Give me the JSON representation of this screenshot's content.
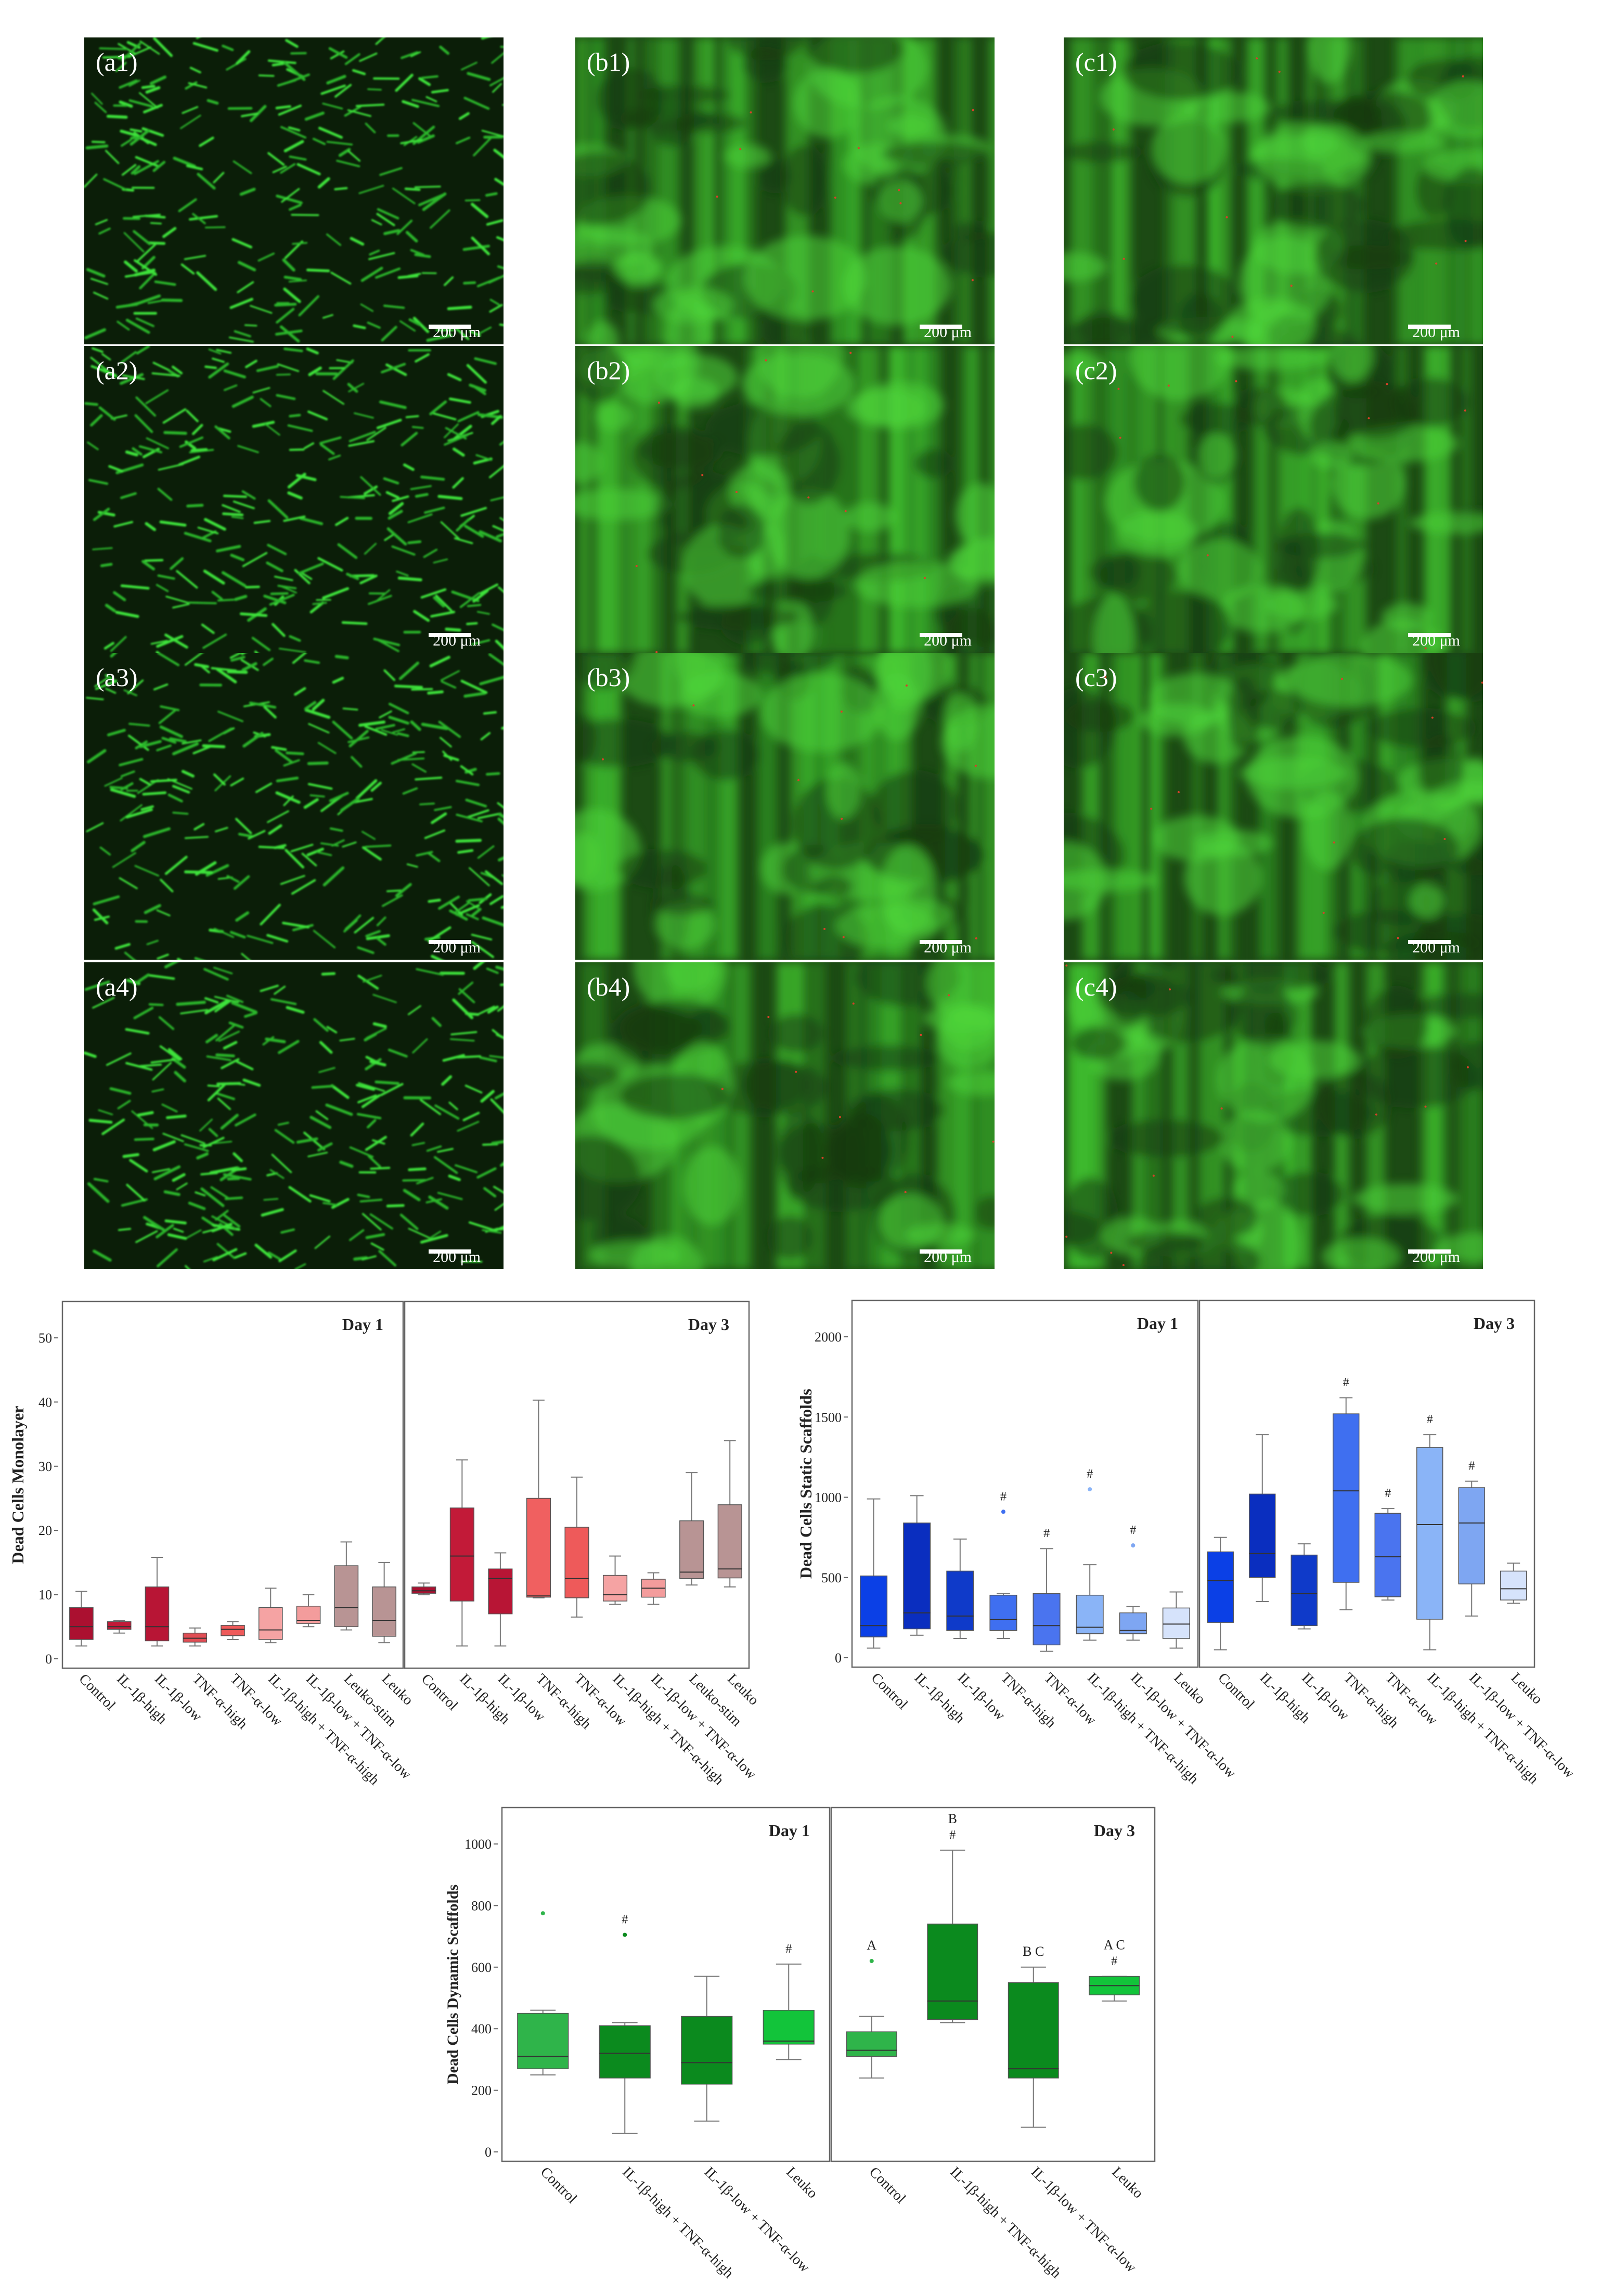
{
  "micrographs": [
    {
      "label": "(a1)",
      "scale": "200 μm",
      "kind": "mono"
    },
    {
      "label": "(b1)",
      "scale": "200 μm",
      "kind": "scaf"
    },
    {
      "label": "(c1)",
      "scale": "200 μm",
      "kind": "scaf"
    },
    {
      "label": "(a2)",
      "scale": "200 μm",
      "kind": "mono"
    },
    {
      "label": "(b2)",
      "scale": "200 μm",
      "kind": "scaf"
    },
    {
      "label": "(c2)",
      "scale": "200 μm",
      "kind": "scaf"
    },
    {
      "label": "(a3)",
      "scale": "200 μm",
      "kind": "mono"
    },
    {
      "label": "(b3)",
      "scale": "200 μm",
      "kind": "scaf"
    },
    {
      "label": "(c3)",
      "scale": "200 μm",
      "kind": "scaf"
    },
    {
      "label": "(a4)",
      "scale": "200 μm",
      "kind": "mono"
    },
    {
      "label": "(b4)",
      "scale": "200 μm",
      "kind": "scaf"
    },
    {
      "label": "(c4)",
      "scale": "200 μm",
      "kind": "scaf"
    }
  ],
  "chart_data": [
    {
      "type": "box",
      "ylabel": "Dead Cells Monolayer",
      "ylim": [
        0,
        50
      ],
      "yticks": [
        0,
        10,
        20,
        30,
        40,
        50
      ],
      "panels": [
        {
          "title": "Day 1",
          "categories": [
            "Control",
            "IL-1β-high",
            "IL-1β-low",
            "TNF-α-high",
            "TNF-α-low",
            "IL-1β-high + TNF-α-high",
            "IL-1β-low + TNF-α-low",
            "Leuko-stim",
            "Leuko"
          ],
          "colors": [
            "#ab1030",
            "#c21a38",
            "#b81535",
            "#e14d54",
            "#ee5a5a",
            "#f5a3a3",
            "#f39c9c",
            "#b89494",
            "#b89494"
          ],
          "boxes": [
            {
              "min": 2,
              "q1": 3,
              "median": 5,
              "q3": 8,
              "max": 10.5
            },
            {
              "min": 4,
              "q1": 4.6,
              "median": 5,
              "q3": 5.8,
              "max": 6
            },
            {
              "min": 2,
              "q1": 2.8,
              "median": 5,
              "q3": 11.2,
              "max": 15.8
            },
            {
              "min": 2,
              "q1": 2.6,
              "median": 3.2,
              "q3": 4,
              "max": 4.8
            },
            {
              "min": 3,
              "q1": 3.6,
              "median": 4.6,
              "q3": 5.2,
              "max": 5.8
            },
            {
              "min": 2.5,
              "q1": 3,
              "median": 4.5,
              "q3": 8,
              "max": 11
            },
            {
              "min": 5,
              "q1": 5.5,
              "median": 6,
              "q3": 8.2,
              "max": 10
            },
            {
              "min": 4.5,
              "q1": 5,
              "median": 8,
              "q3": 14.5,
              "max": 18.2
            },
            {
              "min": 2.5,
              "q1": 3.5,
              "median": 6,
              "q3": 11.2,
              "max": 15
            }
          ]
        },
        {
          "title": "Day 3",
          "categories": [
            "Control",
            "IL-1β-high",
            "IL-1β-low",
            "TNF-α-high",
            "TNF-α-low",
            "IL-1β-high + TNF-α-high",
            "IL-1β-low + TNF-α-low",
            "Leuko-stim",
            "Leuko"
          ],
          "colors": [
            "#ab1030",
            "#c21a38",
            "#b81535",
            "#f06060",
            "#ee5a5a",
            "#f5a3a3",
            "#f39c9c",
            "#b89494",
            "#b89494"
          ],
          "boxes": [
            {
              "min": 10,
              "q1": 10.2,
              "median": 10.6,
              "q3": 11.2,
              "max": 11.8
            },
            {
              "min": 2,
              "q1": 9,
              "median": 16,
              "q3": 23.5,
              "max": 31
            },
            {
              "min": 2,
              "q1": 7,
              "median": 12.5,
              "q3": 14,
              "max": 16.5
            },
            {
              "min": 9.5,
              "q1": 9.6,
              "median": 9.8,
              "q3": 25,
              "max": 40.3
            },
            {
              "min": 6.5,
              "q1": 9.5,
              "median": 12.5,
              "q3": 20.5,
              "max": 28.3
            },
            {
              "min": 8.5,
              "q1": 9,
              "median": 10,
              "q3": 13,
              "max": 16
            },
            {
              "min": 8.5,
              "q1": 9.6,
              "median": 11,
              "q3": 12.4,
              "max": 13.4
            },
            {
              "min": 11.5,
              "q1": 12.5,
              "median": 13.5,
              "q3": 21.5,
              "max": 29
            },
            {
              "min": 11.2,
              "q1": 12.6,
              "median": 14,
              "q3": 24,
              "max": 34
            }
          ]
        }
      ]
    },
    {
      "type": "box",
      "ylabel": "Dead Cells Static Scaffolds",
      "ylim": [
        0,
        2000
      ],
      "yticks": [
        0,
        500,
        1000,
        1500,
        2000
      ],
      "panels": [
        {
          "title": "Day 1",
          "categories": [
            "Control",
            "IL-1β-high",
            "IL-1β-low",
            "TNF-α-high",
            "TNF-α-low",
            "IL-1β-high + TNF-α-high",
            "IL-1β-low + TNF-α-low",
            "Leuko"
          ],
          "colors": [
            "#0b40e6",
            "#0a2ebf",
            "#0f3ac9",
            "#3f6ff0",
            "#4a74ef",
            "#8ab4f7",
            "#7ea6f2",
            "#d6e3fb"
          ],
          "boxes": [
            {
              "min": 60,
              "q1": 130,
              "median": 200,
              "q3": 510,
              "max": 990
            },
            {
              "min": 140,
              "q1": 180,
              "median": 280,
              "q3": 840,
              "max": 1010
            },
            {
              "min": 120,
              "q1": 170,
              "median": 260,
              "q3": 540,
              "max": 740
            },
            {
              "min": 120,
              "q1": 170,
              "median": 240,
              "q3": 390,
              "max": 400,
              "outliers": [
                910
              ],
              "mark": "#"
            },
            {
              "min": 40,
              "q1": 80,
              "median": 200,
              "q3": 400,
              "max": 680,
              "mark": "#"
            },
            {
              "min": 110,
              "q1": 150,
              "median": 190,
              "q3": 390,
              "max": 580,
              "outliers": [
                1050
              ],
              "mark": "#"
            },
            {
              "min": 110,
              "q1": 150,
              "median": 170,
              "q3": 280,
              "max": 320,
              "outliers": [
                700
              ],
              "mark": "#"
            },
            {
              "min": 60,
              "q1": 120,
              "median": 210,
              "q3": 310,
              "max": 410
            }
          ]
        },
        {
          "title": "Day 3",
          "categories": [
            "Control",
            "IL-1β-high",
            "IL-1β-low",
            "TNF-α-high",
            "TNF-α-low",
            "IL-1β-high + TNF-α-high",
            "IL-1β-low + TNF-α-low",
            "Leuko"
          ],
          "colors": [
            "#0b40e6",
            "#0a2ebf",
            "#0f3ac9",
            "#3f6ff0",
            "#4a74ef",
            "#8ab4f7",
            "#7ea6f2",
            "#d6e3fb"
          ],
          "boxes": [
            {
              "min": 50,
              "q1": 220,
              "median": 480,
              "q3": 660,
              "max": 750
            },
            {
              "min": 350,
              "q1": 500,
              "median": 650,
              "q3": 1020,
              "max": 1390
            },
            {
              "min": 180,
              "q1": 200,
              "median": 400,
              "q3": 640,
              "max": 710
            },
            {
              "min": 300,
              "q1": 470,
              "median": 1040,
              "q3": 1520,
              "max": 1620,
              "mark": "#"
            },
            {
              "min": 360,
              "q1": 380,
              "median": 630,
              "q3": 900,
              "max": 930,
              "mark": "#"
            },
            {
              "min": 50,
              "q1": 240,
              "median": 830,
              "q3": 1310,
              "max": 1390,
              "mark": "#"
            },
            {
              "min": 260,
              "q1": 460,
              "median": 840,
              "q3": 1060,
              "max": 1100,
              "mark": "#"
            },
            {
              "min": 340,
              "q1": 360,
              "median": 430,
              "q3": 540,
              "max": 590
            }
          ]
        }
      ]
    },
    {
      "type": "box",
      "ylabel": "Dead Cells Dynamic Scaffolds",
      "ylim": [
        0,
        1000
      ],
      "yticks": [
        0,
        200,
        400,
        600,
        800,
        1000
      ],
      "panels": [
        {
          "title": "Day 1",
          "categories": [
            "Control",
            "IL-1β-high + TNF-α-high",
            "IL-1β-low + TNF-α-low",
            "Leuko"
          ],
          "colors": [
            "#2fb44a",
            "#0b8a1e",
            "#0b8a1e",
            "#12c43a"
          ],
          "boxes": [
            {
              "min": 250,
              "q1": 270,
              "median": 310,
              "q3": 450,
              "max": 460,
              "outliers": [
                775
              ]
            },
            {
              "min": 60,
              "q1": 240,
              "median": 320,
              "q3": 410,
              "max": 420,
              "outliers": [
                705
              ],
              "mark": "#"
            },
            {
              "min": 100,
              "q1": 220,
              "median": 290,
              "q3": 440,
              "max": 570
            },
            {
              "min": 300,
              "q1": 350,
              "median": 360,
              "q3": 460,
              "max": 610,
              "mark": "#"
            }
          ]
        },
        {
          "title": "Day 3",
          "categories": [
            "Control",
            "IL-1β-high + TNF-α-high",
            "IL-1β-low + TNF-α-low",
            "Leuko"
          ],
          "colors": [
            "#2fb44a",
            "#0b8a1e",
            "#0b8a1e",
            "#12c43a"
          ],
          "boxes": [
            {
              "min": 240,
              "q1": 310,
              "median": 330,
              "q3": 390,
              "max": 440,
              "outliers": [
                620
              ],
              "letters": "A"
            },
            {
              "min": 420,
              "q1": 430,
              "median": 490,
              "q3": 740,
              "max": 980,
              "mark": "#",
              "letters": "B"
            },
            {
              "min": 80,
              "q1": 240,
              "median": 270,
              "q3": 550,
              "max": 600,
              "letters": "B C"
            },
            {
              "min": 490,
              "q1": 510,
              "median": 540,
              "q3": 570,
              "max": 570,
              "mark": "#",
              "letters": "A C"
            }
          ]
        }
      ]
    }
  ]
}
